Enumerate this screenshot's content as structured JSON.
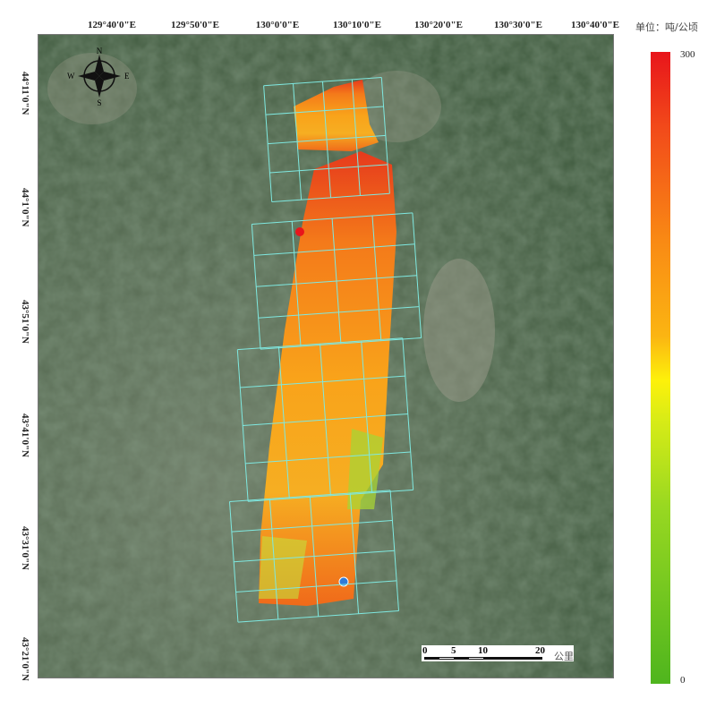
{
  "map": {
    "longitude_labels": [
      "129°40'0\"E",
      "129°50'0\"E",
      "130°0'0\"E",
      "130°10'0\"E",
      "130°20'0\"E",
      "130°30'0\"E",
      "130°40'0\"E"
    ],
    "latitude_labels": [
      "44°11'0\"N",
      "44°1'0\"N",
      "43°51'0\"N",
      "43°41'0\"N",
      "43°31'0\"N",
      "43°21'0\"N"
    ],
    "compass": {
      "n": "N",
      "s": "S",
      "e": "E",
      "w": "W"
    },
    "basemap": "satellite imagery"
  },
  "legend": {
    "unit": "单位：吨/公顷",
    "max": "300",
    "min": "0",
    "colors": [
      "#e8151b",
      "#f98a14",
      "#fdf10a",
      "#4fb51e"
    ]
  },
  "scale_bar": {
    "ticks": [
      "0",
      "5",
      "10",
      "20"
    ],
    "unit": "公里"
  },
  "colors": {
    "grid": "#7fe8e0",
    "highlight_point": "#2f7bd8",
    "hotspot": "#e8151b"
  }
}
